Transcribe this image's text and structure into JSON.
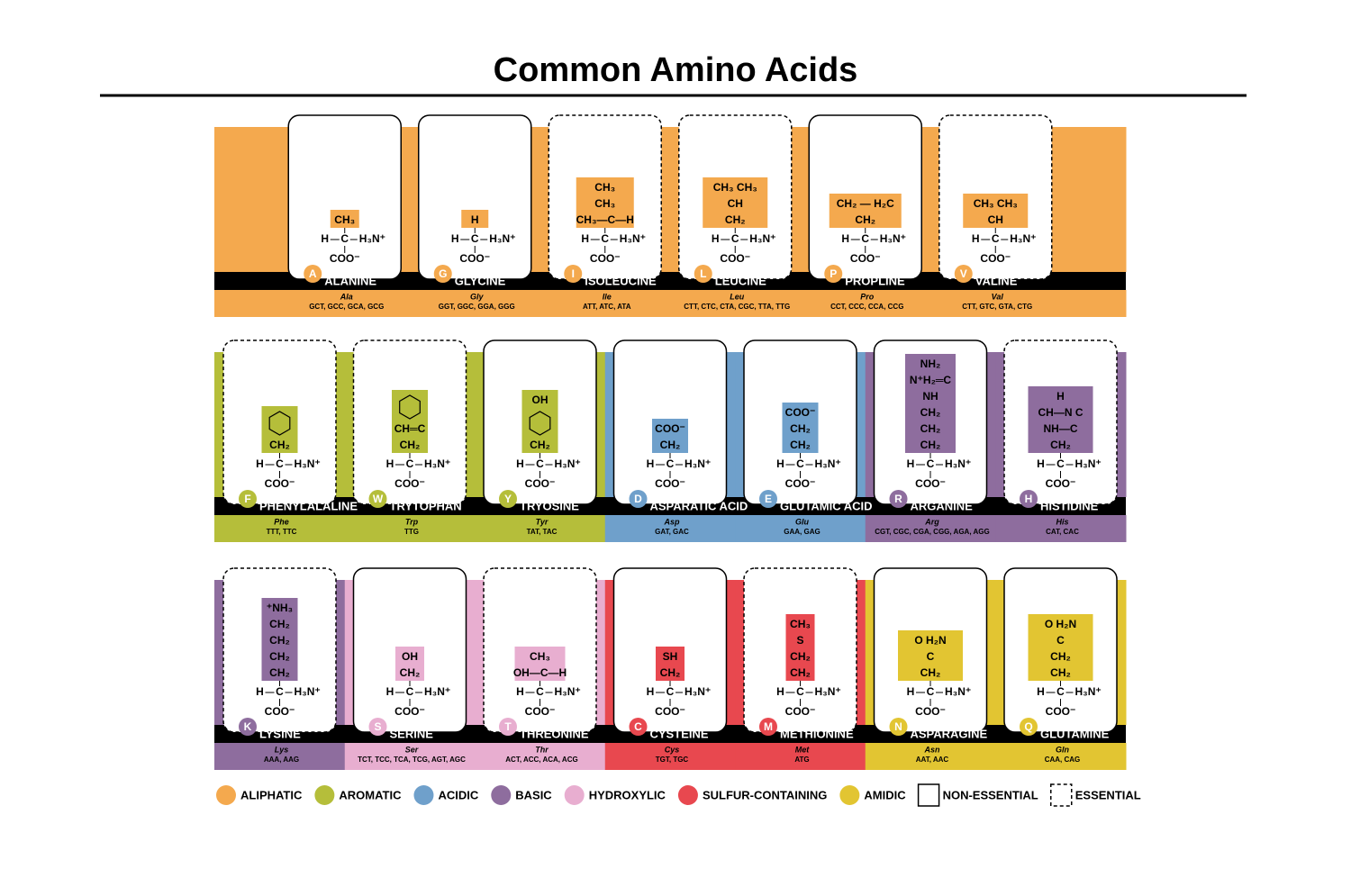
{
  "title": "Common Amino Acids",
  "backbone": {
    "h": "H",
    "c": "C",
    "n": "H₃N⁺",
    "coo": "COO⁻"
  },
  "rows": [
    {
      "amino_acids": [
        {
          "letter": "A",
          "name": "ALANINE",
          "abbr": "Ala",
          "codons": "GCT, GCC, GCA, GCG",
          "color": "#f4a94e",
          "essential": false,
          "side_chain": [
            "CH₃"
          ]
        },
        {
          "letter": "G",
          "name": "GLYCINE",
          "abbr": "Gly",
          "codons": "GGT, GGC, GGA, GGG",
          "color": "#f4a94e",
          "essential": false,
          "side_chain": [
            "H"
          ]
        },
        {
          "letter": "I",
          "name": "ISOLEUCINE",
          "abbr": "Ile",
          "codons": "ATT, ATC, ATA",
          "color": "#f4a94e",
          "essential": true,
          "side_chain": [
            "CH₃",
            "CH₃",
            "CH₃—C—H"
          ]
        },
        {
          "letter": "L",
          "name": "LEUCINE",
          "abbr": "Leu",
          "codons": "CTT, CTC, CTA, CGC, TTA, TTG",
          "color": "#f4a94e",
          "essential": true,
          "side_chain": [
            "CH₃  CH₃",
            "CH",
            "CH₂"
          ]
        },
        {
          "letter": "P",
          "name": "PROPLINE",
          "abbr": "Pro",
          "codons": "CCT, CCC, CCA, CCG",
          "color": "#f4a94e",
          "essential": false,
          "side_chain": [
            "CH₂ — H₂C",
            "CH₂"
          ]
        },
        {
          "letter": "V",
          "name": "VALINE",
          "abbr": "Val",
          "codons": "CTT, GTC, GTA, CTG",
          "color": "#f4a94e",
          "essential": true,
          "side_chain": [
            "CH₃  CH₃",
            "CH"
          ]
        }
      ]
    },
    {
      "amino_acids": [
        {
          "letter": "F",
          "name": "PHENYLALALINE",
          "abbr": "Phe",
          "codons": "TTT, TTC",
          "color": "#b5be3a",
          "essential": true,
          "side_chain": [
            {
              "ring": true
            },
            "CH₂"
          ]
        },
        {
          "letter": "W",
          "name": "TRYTOPHAN",
          "abbr": "Trp",
          "codons": "TTG",
          "color": "#b5be3a",
          "essential": true,
          "side_chain": [
            {
              "ring": true
            },
            "CH═C",
            "CH₂"
          ]
        },
        {
          "letter": "Y",
          "name": "TRYOSINE",
          "abbr": "Tyr",
          "codons": "TAT, TAC",
          "color": "#b5be3a",
          "essential": false,
          "side_chain": [
            "OH",
            {
              "ring": true
            },
            "CH₂"
          ]
        },
        {
          "letter": "D",
          "name": "ASPARATIC ACID",
          "abbr": "Asp",
          "codons": "GAT, GAC",
          "color": "#6fa0cb",
          "essential": false,
          "side_chain": [
            "COO⁻",
            "CH₂"
          ]
        },
        {
          "letter": "E",
          "name": "GLUTAMIC ACID",
          "abbr": "Glu",
          "codons": "GAA, GAG",
          "color": "#6fa0cb",
          "essential": false,
          "side_chain": [
            "COO⁻",
            "CH₂",
            "CH₂"
          ]
        },
        {
          "letter": "R",
          "name": "ARGANINE",
          "abbr": "Arg",
          "codons": "CGT, CGC, CGA, CGG, AGA, AGG",
          "color": "#8e6d9e",
          "essential": false,
          "side_chain": [
            "NH₂",
            "N⁺H₂═C",
            "NH",
            "CH₂",
            "CH₂",
            "CH₂"
          ]
        },
        {
          "letter": "H",
          "name": "HISTIDINE",
          "abbr": "His",
          "codons": "CAT, CAC",
          "color": "#8e6d9e",
          "essential": true,
          "side_chain": [
            "H",
            "CH—N   C",
            "NH—C",
            "CH₂"
          ]
        }
      ]
    },
    {
      "amino_acids": [
        {
          "letter": "K",
          "name": "LYSINE",
          "abbr": "Lys",
          "codons": "AAA, AAG",
          "color": "#8e6d9e",
          "essential": true,
          "side_chain": [
            "⁺NH₃",
            "CH₂",
            "CH₂",
            "CH₂",
            "CH₂"
          ]
        },
        {
          "letter": "S",
          "name": "SERINE",
          "abbr": "Ser",
          "codons": "TCT, TCC, TCA, TCG, AGT, AGC",
          "color": "#e8aed0",
          "essential": false,
          "side_chain": [
            "OH",
            "CH₂"
          ]
        },
        {
          "letter": "T",
          "name": "THREONINE",
          "abbr": "Thr",
          "codons": "ACT, ACC, ACA, ACG",
          "color": "#e8aed0",
          "essential": true,
          "side_chain": [
            "CH₃",
            "OH—C—H"
          ]
        },
        {
          "letter": "C",
          "name": "CYSTEINE",
          "abbr": "Cys",
          "codons": "TGT, TGC",
          "color": "#e8484f",
          "essential": false,
          "side_chain": [
            "SH",
            "CH₂"
          ]
        },
        {
          "letter": "M",
          "name": "METHIONINE",
          "abbr": "Met",
          "codons": "ATG",
          "color": "#e8484f",
          "essential": true,
          "side_chain": [
            "CH₃",
            "S",
            "CH₂",
            "CH₂"
          ]
        },
        {
          "letter": "N",
          "name": "ASPARAGINE",
          "abbr": "Asn",
          "codons": "AAT, AAC",
          "color": "#e2c532",
          "essential": false,
          "side_chain": [
            "O    H₂N",
            "C",
            "CH₂"
          ]
        },
        {
          "letter": "Q",
          "name": "GLUTAMINE",
          "abbr": "Gln",
          "codons": "CAA, CAG",
          "color": "#e2c532",
          "essential": false,
          "side_chain": [
            "O    H₂N",
            "C",
            "CH₂",
            "CH₂"
          ]
        }
      ]
    }
  ],
  "legend": [
    {
      "label": "ALIPHATIC",
      "color": "#f4a94e"
    },
    {
      "label": "AROMATIC",
      "color": "#b5be3a"
    },
    {
      "label": "ACIDIC",
      "color": "#6fa0cb"
    },
    {
      "label": "BASIC",
      "color": "#8e6d9e"
    },
    {
      "label": "HYDROXYLIC",
      "color": "#e8aed0"
    },
    {
      "label": "SULFUR-CONTAINING",
      "color": "#e8484f"
    },
    {
      "label": "AMIDIC",
      "color": "#e2c532"
    },
    {
      "label": "NON-ESSENTIAL",
      "essential": false
    },
    {
      "label": "ESSENTIAL",
      "essential": true
    }
  ]
}
